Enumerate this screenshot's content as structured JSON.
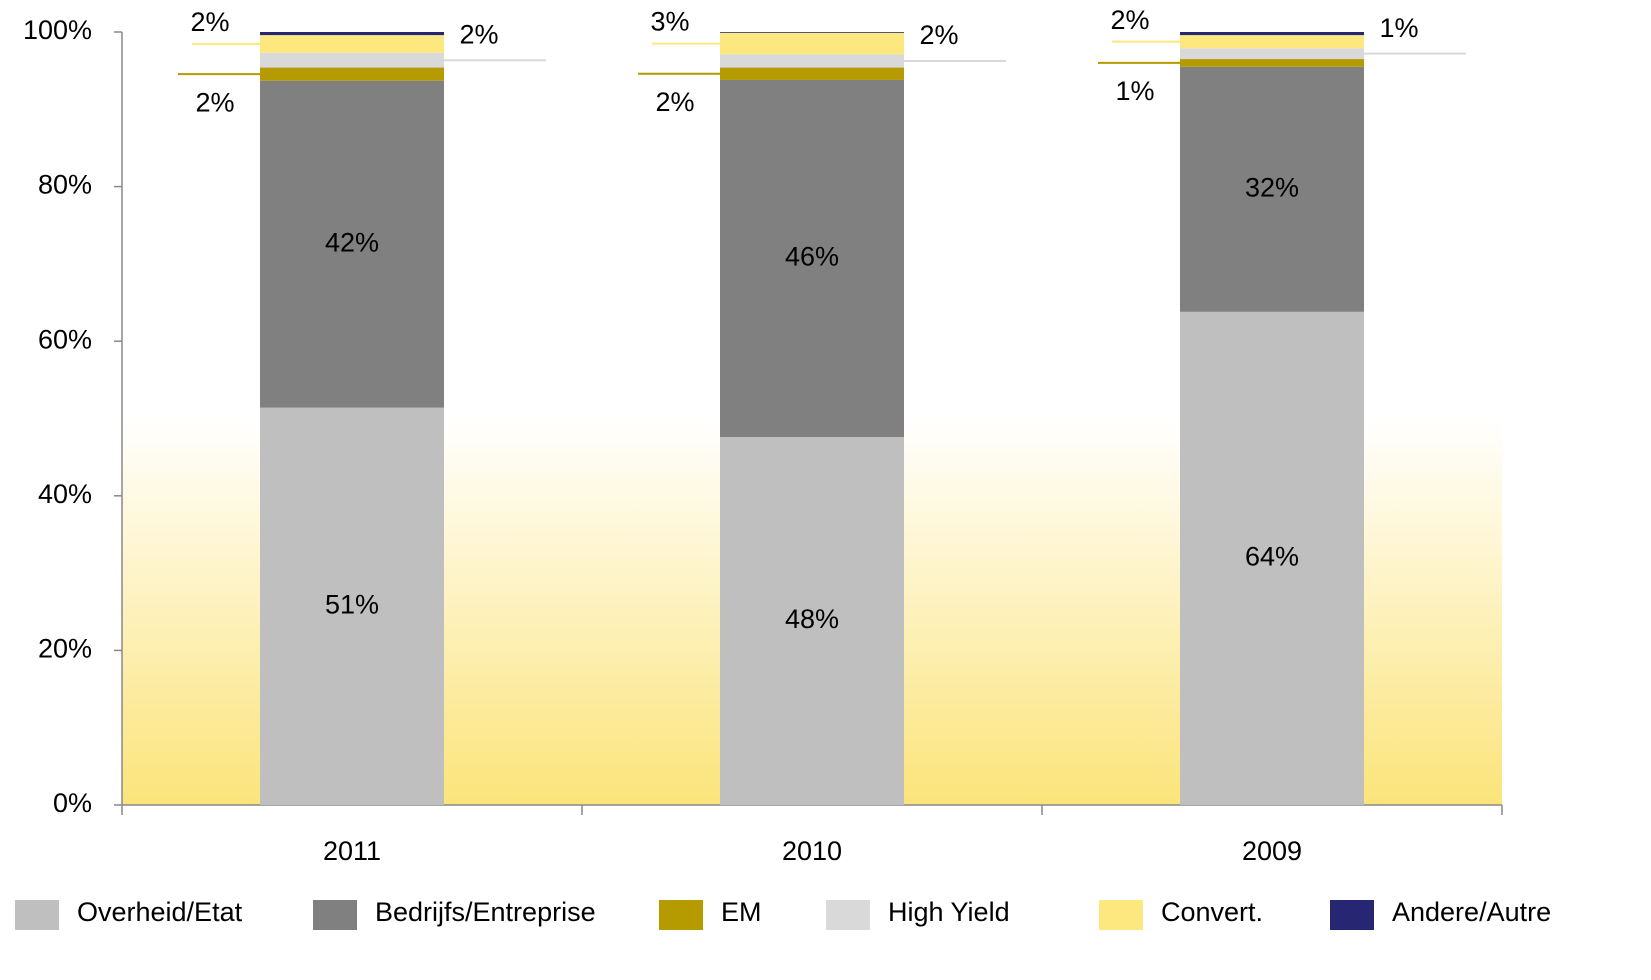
{
  "chart_data": {
    "type": "stacked_bar",
    "categories": [
      "2011",
      "2010",
      "2009"
    ],
    "series": [
      {
        "name": "Overheid/Etat",
        "color": "#bfbfbf",
        "values": [
          51.4,
          47.6,
          63.8
        ],
        "value_labels": [
          "51%",
          "48%",
          "64%"
        ]
      },
      {
        "name": "Bedrijfs/Entreprise",
        "color": "#808080",
        "values": [
          42.3,
          46.2,
          31.7
        ],
        "value_labels": [
          "42%",
          "46%",
          "32%"
        ]
      },
      {
        "name": "EM",
        "color": "#b59a00",
        "values": [
          1.7,
          1.6,
          1.0
        ],
        "value_labels": [
          "2%",
          "2%",
          "1%"
        ]
      },
      {
        "name": "High Yield",
        "color": "#d9d9d9",
        "values": [
          1.9,
          1.7,
          1.4
        ],
        "value_labels": [
          "2%",
          "2%",
          "1%"
        ]
      },
      {
        "name": "Convert.",
        "color": "#fde77f",
        "values": [
          2.3,
          2.8,
          1.7
        ],
        "value_labels": [
          "2%",
          "3%",
          "2%"
        ]
      },
      {
        "name": "Andere/Autre",
        "color": "#262673",
        "values": [
          0.4,
          0.1,
          0.4
        ]
      }
    ],
    "ylim": [
      0,
      100
    ],
    "yticks": [
      {
        "value": 0,
        "label": "0%"
      },
      {
        "value": 20,
        "label": "20%"
      },
      {
        "value": 40,
        "label": "40%"
      },
      {
        "value": 60,
        "label": "60%"
      },
      {
        "value": 80,
        "label": "80%"
      },
      {
        "value": 100,
        "label": "100%"
      }
    ],
    "grid": false
  }
}
